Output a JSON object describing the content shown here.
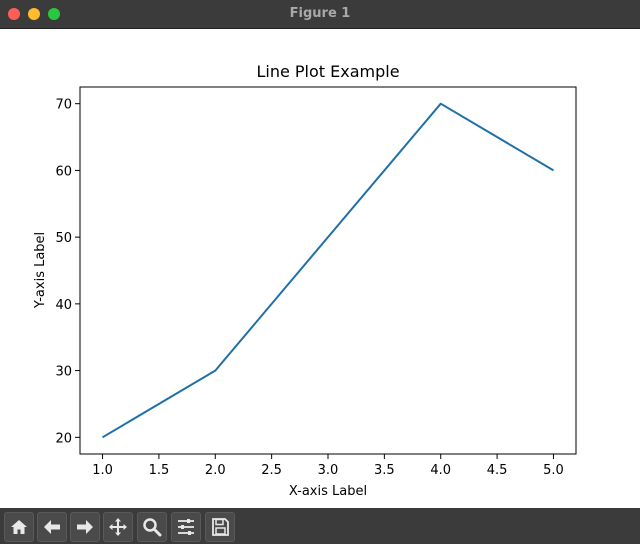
{
  "window": {
    "title": "Figure 1"
  },
  "toolbar": {
    "buttons": [
      {
        "icon": "home-icon",
        "name": "home-button"
      },
      {
        "icon": "back-arrow-icon",
        "name": "back-button"
      },
      {
        "icon": "forward-arrow-icon",
        "name": "forward-button"
      },
      {
        "icon": "pan-move-icon",
        "name": "pan-button"
      },
      {
        "icon": "zoom-magnifier-icon",
        "name": "zoom-button"
      },
      {
        "icon": "configure-subplots-icon",
        "name": "configure-subplots-button"
      },
      {
        "icon": "save-disk-icon",
        "name": "save-button"
      }
    ]
  },
  "chart_data": {
    "type": "line",
    "title": "Line Plot Example",
    "xlabel": "X-axis Label",
    "ylabel": "Y-axis Label",
    "x": [
      1,
      2,
      3,
      4,
      5
    ],
    "series": [
      {
        "values": [
          20,
          30,
          50,
          70,
          60
        ],
        "color": "#1f6fa8"
      }
    ],
    "xlim": [
      0.8,
      5.2
    ],
    "ylim": [
      17.5,
      72.5
    ],
    "xticks": [
      "1.0",
      "1.5",
      "2.0",
      "2.5",
      "3.0",
      "3.5",
      "4.0",
      "4.5",
      "5.0"
    ],
    "yticks": [
      "20",
      "30",
      "40",
      "50",
      "60",
      "70"
    ],
    "grid": false,
    "legend": "none"
  }
}
